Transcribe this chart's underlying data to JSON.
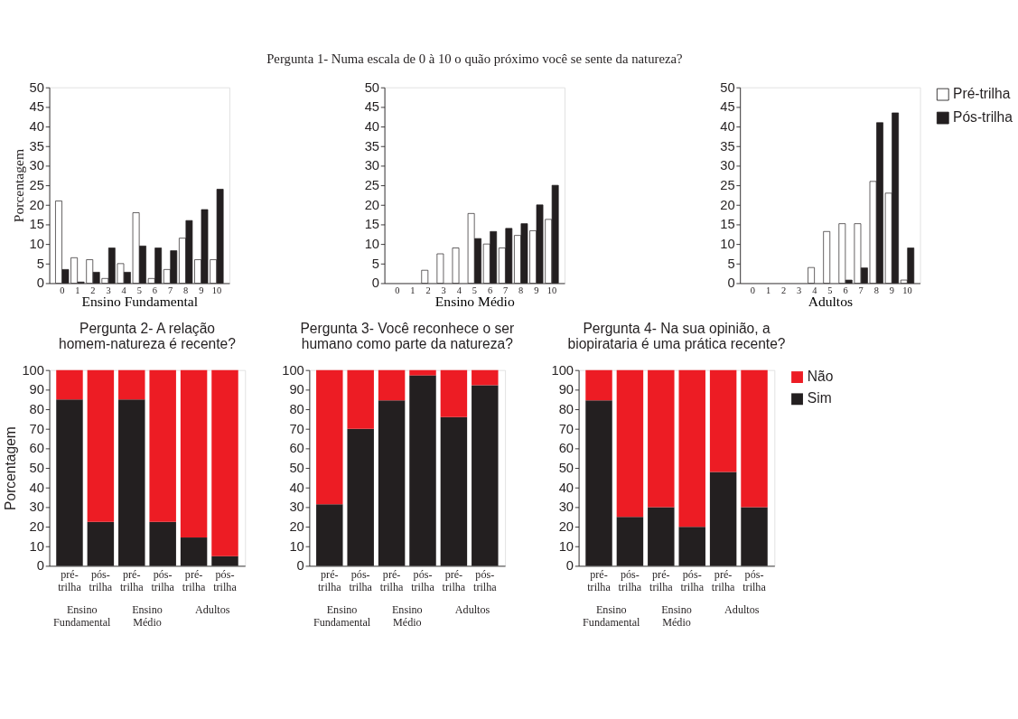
{
  "chart_data": [
    {
      "type": "bar",
      "ylabel": "Porcentagem",
      "xlabel": "Ensino Fundamental",
      "categories": [
        "0",
        "1",
        "2",
        "3",
        "4",
        "5",
        "6",
        "7",
        "8",
        "9",
        "10"
      ],
      "ylim": [
        0,
        50
      ],
      "yticks": [
        0,
        5,
        10,
        15,
        20,
        25,
        30,
        35,
        40,
        45,
        50
      ],
      "grid": false,
      "series": [
        {
          "color": "#ffffff",
          "values": [
            21,
            6.5,
            6,
            1.2,
            5,
            18,
            1.2,
            3.5,
            11.5,
            6,
            6
          ]
        },
        {
          "color": "#231f20",
          "values": [
            3.5,
            0.3,
            2.8,
            9,
            2.8,
            9.5,
            9,
            8.3,
            16,
            18.8,
            24
          ]
        }
      ]
    },
    {
      "type": "bar",
      "title": "Pergunta 1- Numa escala de 0 à 10 o quão próximo você se sente da natureza?",
      "xlabel": "Ensino Médio",
      "categories": [
        "0",
        "1",
        "2",
        "3",
        "4",
        "5",
        "6",
        "7",
        "8",
        "9",
        "10"
      ],
      "ylim": [
        0,
        50
      ],
      "yticks": [
        0,
        5,
        10,
        15,
        20,
        25,
        30,
        35,
        40,
        45,
        50
      ],
      "grid": false,
      "series": [
        {
          "color": "#ffffff",
          "values": [
            0,
            0,
            3.3,
            7.5,
            9,
            17.8,
            10,
            9,
            12.2,
            13.4,
            16.3
          ]
        },
        {
          "color": "#231f20",
          "values": [
            0,
            0,
            0,
            0,
            0,
            11.4,
            13.2,
            14,
            15.2,
            20,
            25
          ]
        }
      ]
    },
    {
      "type": "bar",
      "xlabel": "Adultos",
      "categories": [
        "0",
        "1",
        "2",
        "3",
        "4",
        "5",
        "6",
        "7",
        "8",
        "9",
        "10"
      ],
      "ylim": [
        0,
        50
      ],
      "yticks": [
        0,
        5,
        10,
        15,
        20,
        25,
        30,
        35,
        40,
        45,
        50
      ],
      "grid": false,
      "legend": "right",
      "series": [
        {
          "name": "Pré-trilha",
          "color": "#ffffff",
          "values": [
            0,
            0,
            0,
            0,
            4,
            13.2,
            15.2,
            15.2,
            26,
            23,
            0.8
          ]
        },
        {
          "name": "Pós-trilha",
          "color": "#231f20",
          "values": [
            0,
            0,
            0,
            0,
            0,
            0,
            0.8,
            3.9,
            41,
            43.5,
            9
          ]
        }
      ]
    },
    {
      "type": "bar",
      "title": "Pergunta 2- A relação homem-natureza é recente?",
      "ylabel": "Porcentagem",
      "categories": [
        "pré-trilha",
        "pós-trilha",
        "pré-trilha",
        "pós-trilha",
        "pré-trilha",
        "pós-trilha"
      ],
      "ylim": [
        0,
        100
      ],
      "yticks": [
        0,
        10,
        20,
        30,
        40,
        50,
        60,
        70,
        80,
        90,
        100
      ],
      "grid": false,
      "stacked": true,
      "annotations": [
        "Ensino Fundamental",
        "Ensino Médio",
        "Adultos"
      ],
      "series": [
        {
          "color": "#231f20",
          "values": [
            85,
            22.5,
            85,
            22.5,
            14.5,
            5
          ]
        },
        {
          "color": "#ed1c24",
          "values": [
            15,
            77.5,
            15,
            77.5,
            85.5,
            95
          ]
        }
      ]
    },
    {
      "type": "bar",
      "title": "Pergunta 3- Você reconhece o ser humano como parte da natureza?",
      "categories": [
        "pré-trilha",
        "pós-trilha",
        "pré-trilha",
        "pós-trilha",
        "pré-trilha",
        "pós-trilha"
      ],
      "ylim": [
        0,
        100
      ],
      "yticks": [
        0,
        10,
        20,
        30,
        40,
        50,
        60,
        70,
        80,
        90,
        100
      ],
      "grid": false,
      "stacked": true,
      "annotations": [
        "Ensino Fundamental",
        "Ensino Médio",
        "Adultos"
      ],
      "series": [
        {
          "color": "#231f20",
          "values": [
            31.5,
            70,
            84.5,
            97.3,
            76,
            92.3
          ]
        },
        {
          "color": "#ed1c24",
          "values": [
            68.5,
            30,
            15.5,
            2.7,
            24,
            7.7
          ]
        }
      ]
    },
    {
      "type": "bar",
      "title": "Pergunta 4- Na sua opinião, a biopirataria é uma prática recente?",
      "categories": [
        "pré-trilha",
        "pós-trilha",
        "pré-trilha",
        "pós-trilha",
        "pré-trilha",
        "pós-trilha"
      ],
      "ylim": [
        0,
        100
      ],
      "yticks": [
        0,
        10,
        20,
        30,
        40,
        50,
        60,
        70,
        80,
        90,
        100
      ],
      "grid": false,
      "stacked": true,
      "legend": "right",
      "annotations": [
        "Ensino Fundamental",
        "Ensino Médio",
        "Adultos"
      ],
      "series": [
        {
          "name": "Sim",
          "color": "#231f20",
          "values": [
            84.5,
            25,
            30,
            20,
            48,
            30
          ]
        },
        {
          "name": "Não",
          "color": "#ed1c24",
          "values": [
            15.5,
            75,
            70,
            80,
            52,
            70
          ]
        }
      ]
    }
  ]
}
